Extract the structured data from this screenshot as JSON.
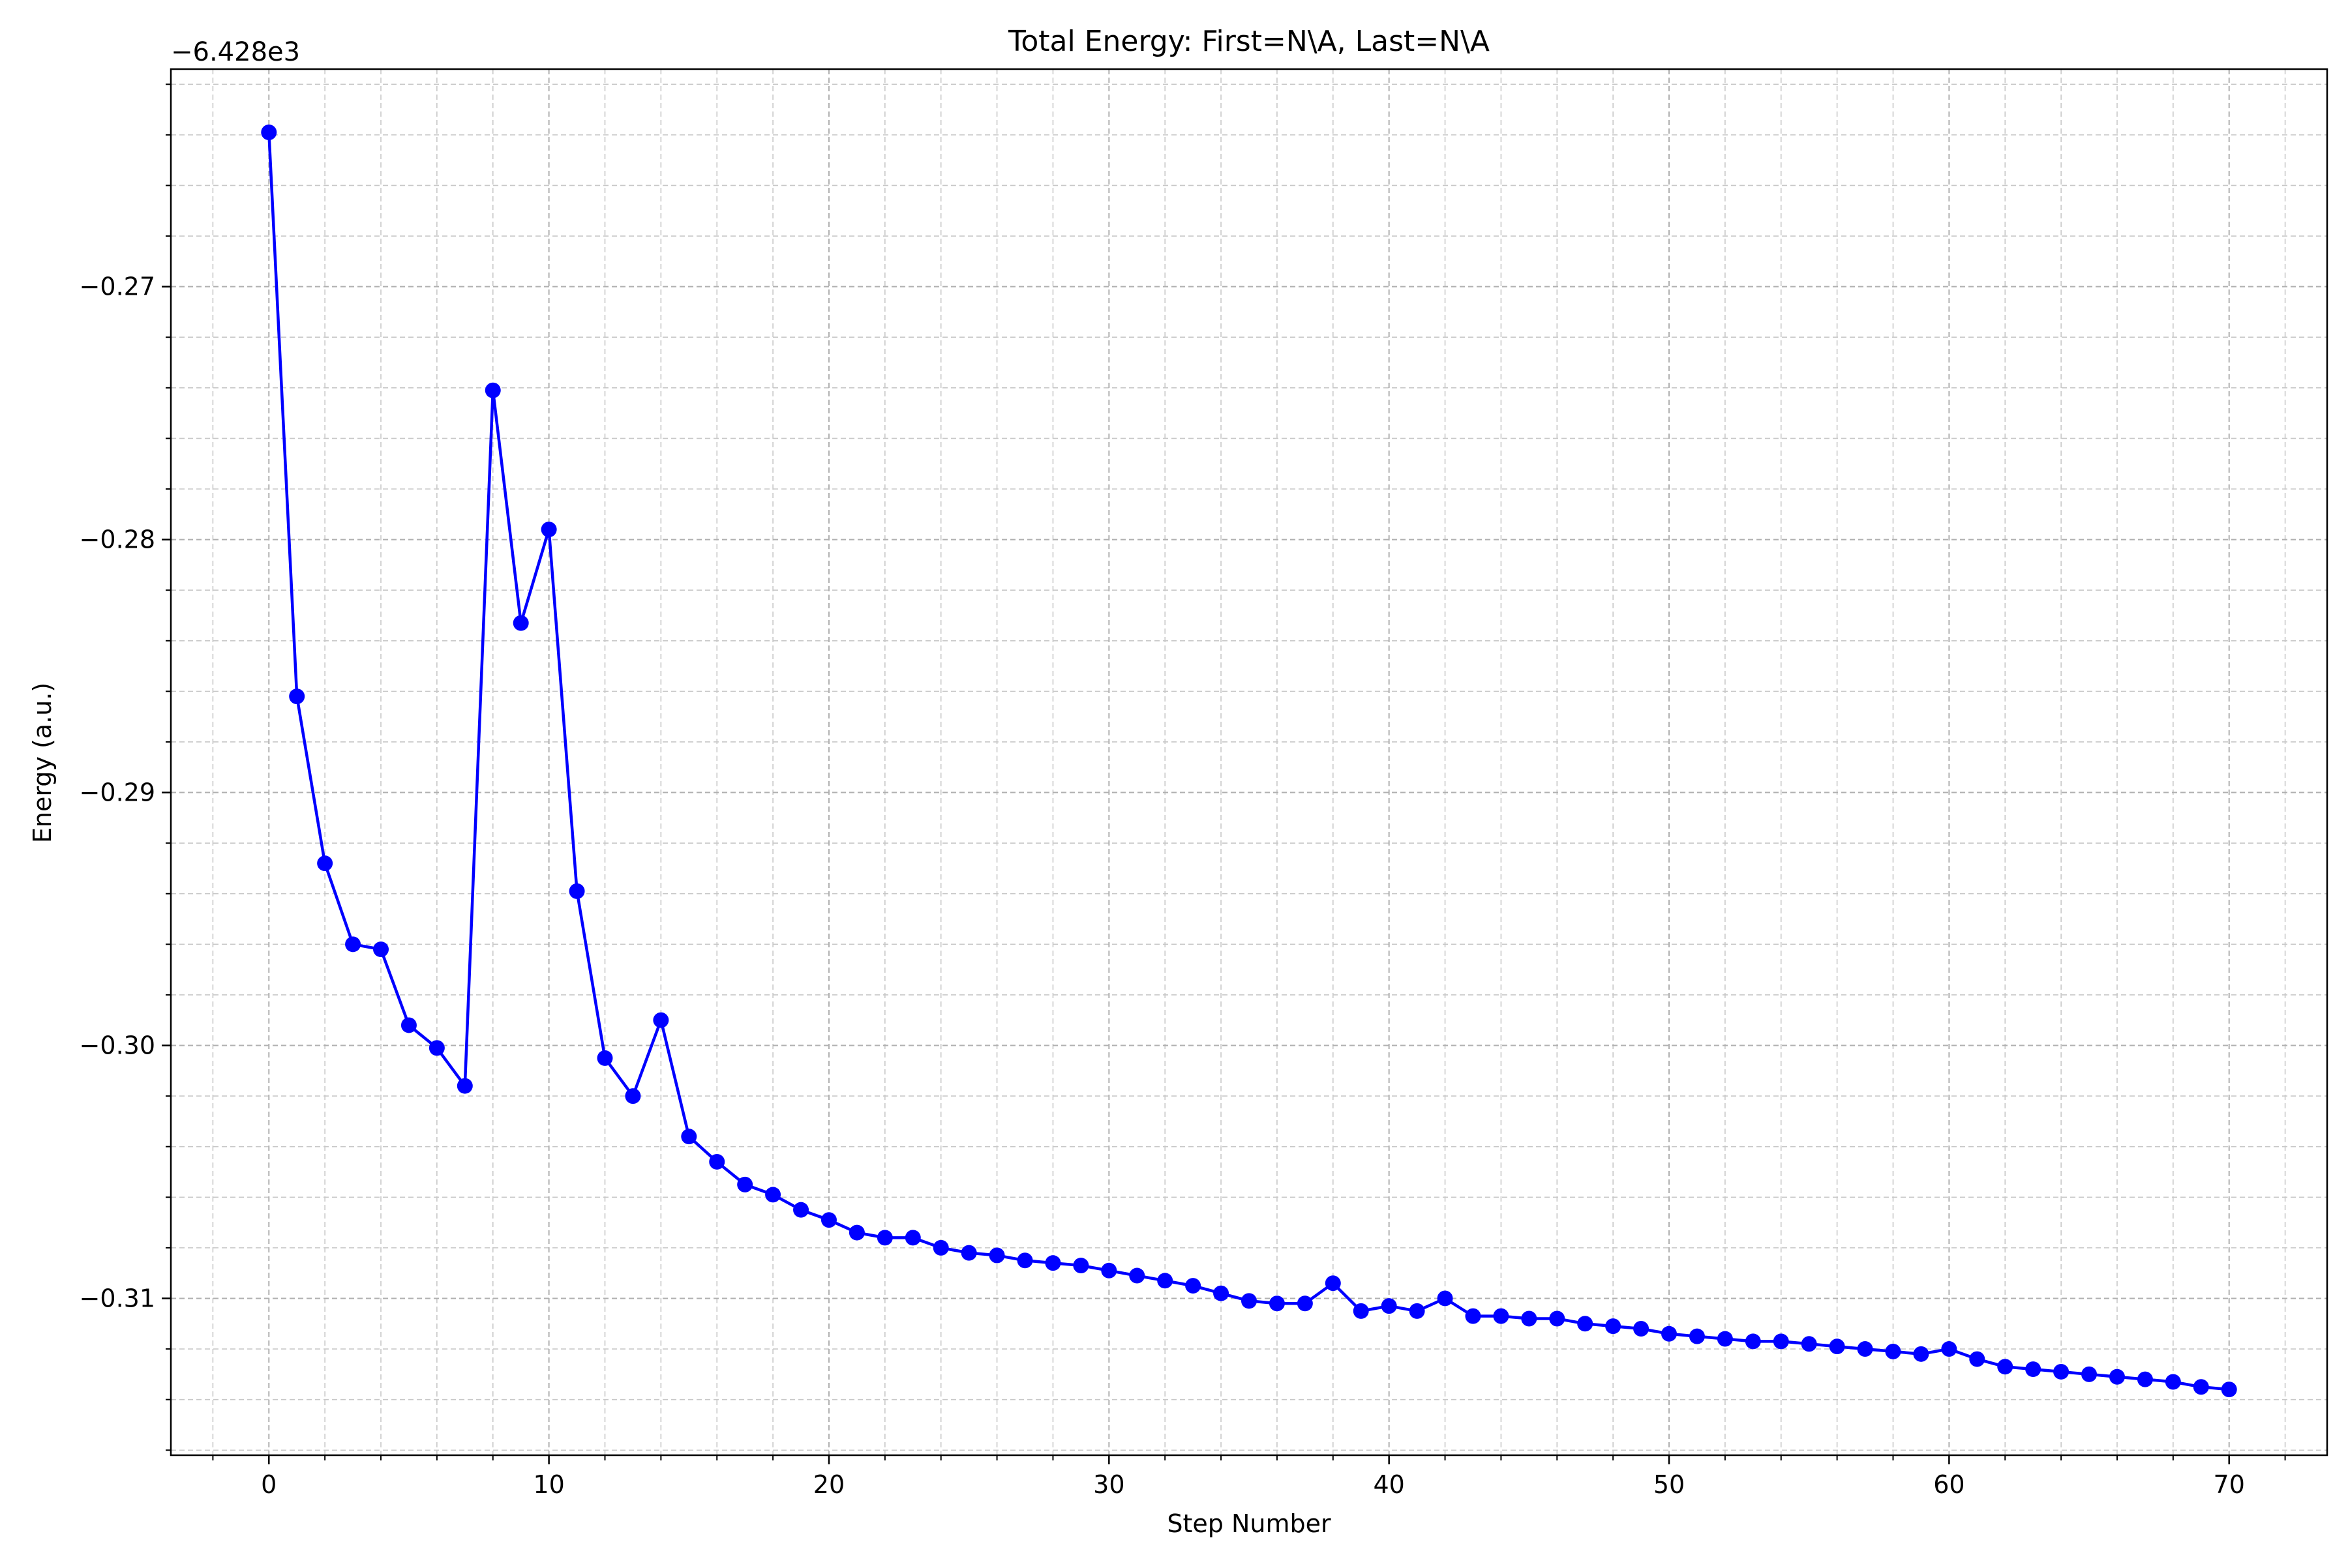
{
  "chart_data": {
    "type": "line",
    "title": "Total Energy: First=N\\A, Last=N\\A",
    "xlabel": "Step Number",
    "ylabel": "Energy (a.u.)",
    "offset_label": "−6.428e3",
    "xlim": [
      -3.5,
      73.5
    ],
    "ylim": [
      -0.3162,
      -0.2614
    ],
    "x_ticks": [
      0,
      10,
      20,
      30,
      40,
      50,
      60,
      70
    ],
    "x_tick_labels": [
      "0",
      "10",
      "20",
      "30",
      "40",
      "50",
      "60",
      "70"
    ],
    "y_ticks": [
      -0.27,
      -0.28,
      -0.29,
      -0.3,
      -0.31
    ],
    "y_tick_labels": [
      "−0.27",
      "−0.28",
      "−0.29",
      "−0.30",
      "−0.31"
    ],
    "x_minor_step": 2,
    "y_minor_step": 0.002,
    "grid": true,
    "color": "#0000ff",
    "x": [
      0,
      1,
      2,
      3,
      4,
      5,
      6,
      7,
      8,
      9,
      10,
      11,
      12,
      13,
      14,
      15,
      16,
      17,
      18,
      19,
      20,
      21,
      22,
      23,
      24,
      25,
      26,
      27,
      28,
      29,
      30,
      31,
      32,
      33,
      34,
      35,
      36,
      37,
      38,
      39,
      40,
      41,
      42,
      43,
      44,
      45,
      46,
      47,
      48,
      49,
      50,
      51,
      52,
      53,
      54,
      55,
      56,
      57,
      58,
      59,
      60,
      61,
      62,
      63,
      64,
      65,
      66,
      67,
      68,
      69,
      70
    ],
    "y": [
      -0.2639,
      -0.2862,
      -0.2928,
      -0.296,
      -0.2962,
      -0.2992,
      -0.3001,
      -0.3016,
      -0.2741,
      -0.2833,
      -0.2796,
      -0.2939,
      -0.3005,
      -0.302,
      -0.299,
      -0.3036,
      -0.3046,
      -0.3055,
      -0.3059,
      -0.3065,
      -0.3069,
      -0.3074,
      -0.3076,
      -0.3076,
      -0.308,
      -0.3082,
      -0.3083,
      -0.3085,
      -0.3086,
      -0.3087,
      -0.3089,
      -0.3091,
      -0.3093,
      -0.3095,
      -0.3098,
      -0.3101,
      -0.3102,
      -0.3102,
      -0.3094,
      -0.3105,
      -0.3103,
      -0.3105,
      -0.31,
      -0.3107,
      -0.3107,
      -0.3108,
      -0.3108,
      -0.311,
      -0.3111,
      -0.3112,
      -0.3114,
      -0.3115,
      -0.3116,
      -0.3117,
      -0.3117,
      -0.3118,
      -0.3119,
      -0.312,
      -0.3121,
      -0.3122,
      -0.312,
      -0.3124,
      -0.3127,
      -0.3128,
      -0.3129,
      -0.313,
      -0.3131,
      -0.3132,
      -0.3133,
      -0.3135,
      -0.3136
    ]
  }
}
